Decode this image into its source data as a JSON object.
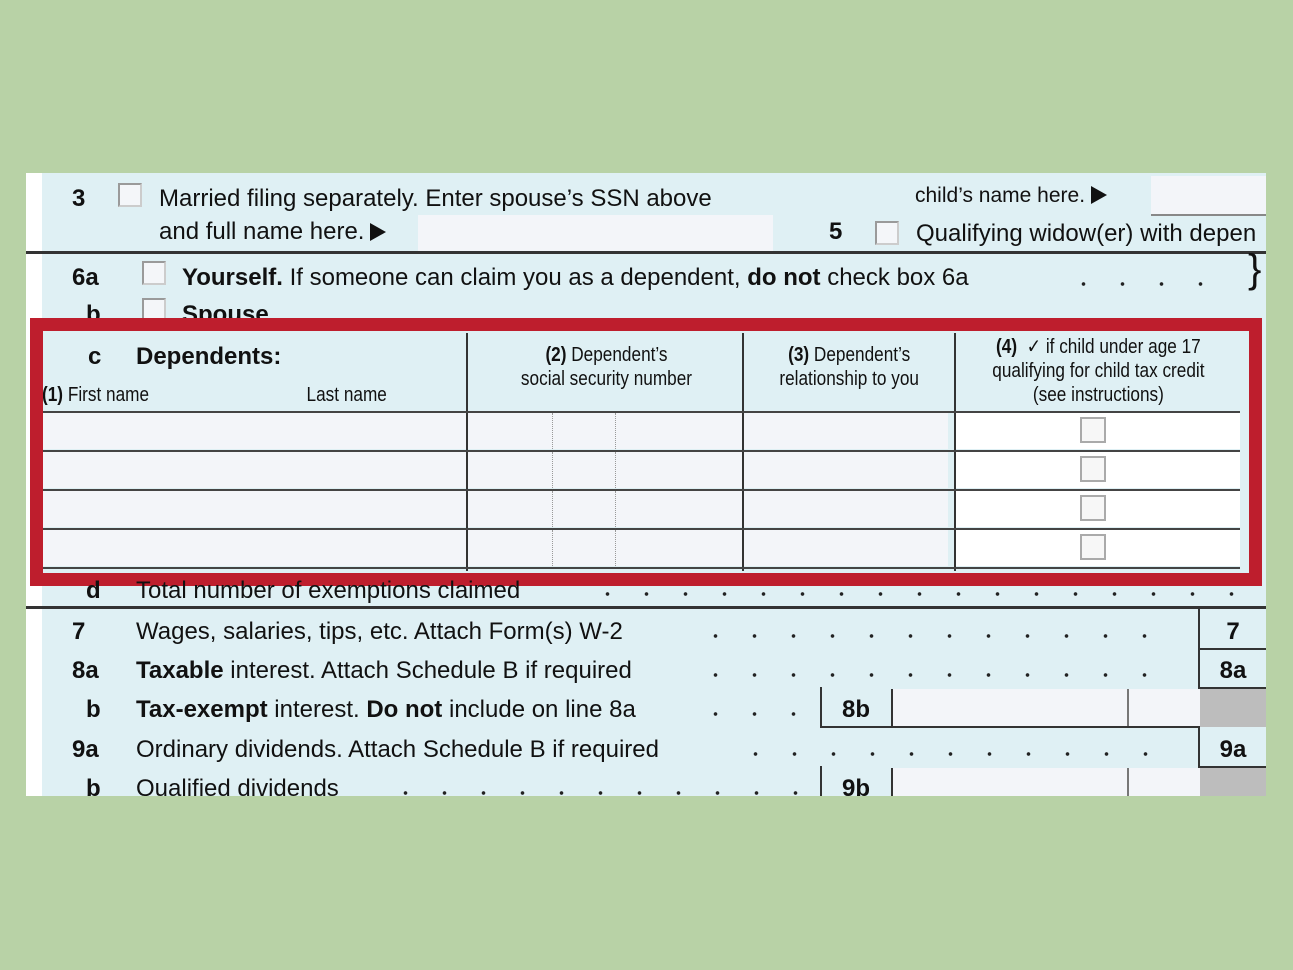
{
  "line3": {
    "num": "3",
    "text": "Married filing separately. Enter spouse’s SSN above",
    "text2": "and full name here."
  },
  "line4": {
    "text": "child’s name here."
  },
  "line5": {
    "num": "5",
    "text": "Qualifying widow(er) with depen"
  },
  "line6a": {
    "num": "6a",
    "bold": "Yourself.",
    "text": " If someone can claim you as a dependent, ",
    "bold2": "do not",
    "text2": " check box 6a"
  },
  "line6b": {
    "num": "b",
    "text": "Spouse"
  },
  "dependents": {
    "letter": "c",
    "title": "Dependents:",
    "col1_num": "(1)",
    "col1_first": "First name",
    "col1_last": "Last name",
    "col2_num": "(2)",
    "col2_a": "Dependent’s",
    "col2_b": "social security number",
    "col3_num": "(3)",
    "col3_a": "Dependent’s",
    "col3_b": "relationship to  you",
    "col4_num": "(4)",
    "col4_a": "✓ if child under age 17",
    "col4_b": "qualifying for child tax credit",
    "col4_c": "(see instructions)",
    "rows": 4
  },
  "line6d": {
    "num": "d",
    "text": "Total number of exemptions claimed"
  },
  "line7": {
    "num": "7",
    "text": "Wages, salaries, tips, etc. Attach Form(s) W-2",
    "box": "7"
  },
  "line8a": {
    "num": "8a",
    "bold": "Taxable",
    "text": " interest. Attach Schedule B if required",
    "box": "8a"
  },
  "line8b": {
    "num": "b",
    "bold": "Tax-exempt",
    "text": " interest. ",
    "bold2": "Do not",
    "text2": " include on line 8a",
    "box": "8b"
  },
  "line9a": {
    "num": "9a",
    "text": "Ordinary dividends. Attach Schedule B if required",
    "box": "9a"
  },
  "line9b": {
    "num": "b",
    "text": "Qualified dividends",
    "box": "9b"
  },
  "colors": {
    "background": "#b8d2a6",
    "form": "#dff0f4",
    "highlight": "#be1e2d"
  }
}
